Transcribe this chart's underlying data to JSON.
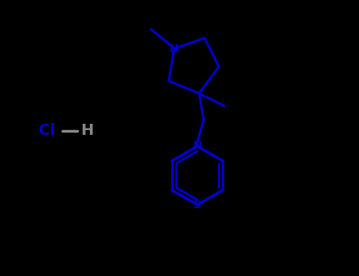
{
  "background_color": "#000000",
  "bond_color": "#0000CD",
  "atom_label_color": "#0000CD",
  "hcl_cl_color": "#0000CD",
  "hcl_h_color": "#888888",
  "line_width": 2.2,
  "inner_lw": 1.8,
  "figsize": [
    4.55,
    3.5
  ],
  "dpi": 100,
  "xlim": [
    0,
    10
  ],
  "ylim": [
    0,
    7.7
  ]
}
